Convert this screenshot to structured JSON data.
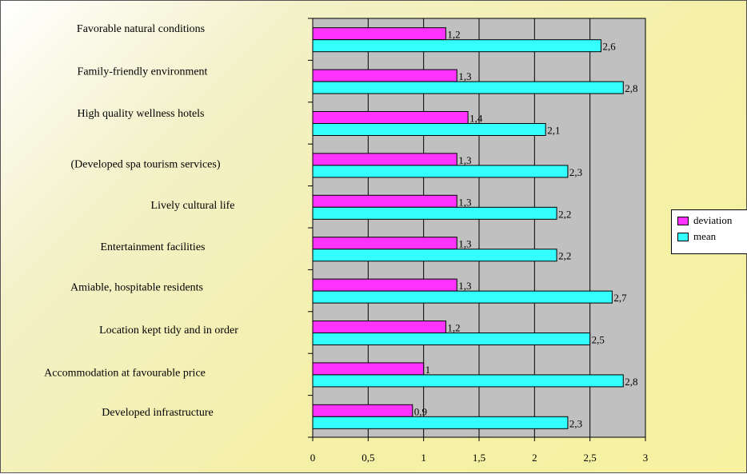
{
  "chart_data": {
    "type": "bar",
    "orientation": "horizontal",
    "categories": [
      "Favorable natural conditions",
      "Family-friendly environment",
      "High quality wellness hotels",
      "(Developed spa tourism services)",
      "Lively cultural life",
      "Entertainment facilities",
      "Amiable, hospitable residents",
      "Location kept tidy and in order",
      "Accommodation at favourable price",
      "Developed infrastructure"
    ],
    "series": [
      {
        "name": "deviation",
        "color": "#ff33ff",
        "values": [
          1.2,
          1.3,
          1.4,
          1.3,
          1.3,
          1.3,
          1.3,
          1.2,
          1,
          0.9
        ],
        "labels": [
          "1,2",
          "1,3",
          "1,4",
          "1,3",
          "1,3",
          "1,3",
          "1,3",
          "1,2",
          "1",
          "0,9"
        ]
      },
      {
        "name": "mean",
        "color": "#33ffff",
        "values": [
          2.6,
          2.8,
          2.1,
          2.3,
          2.2,
          2.2,
          2.7,
          2.5,
          2.8,
          2.3
        ],
        "labels": [
          "2,6",
          "2,8",
          "2,1",
          "2,3",
          "2,2",
          "2,2",
          "2,7",
          "2,5",
          "2,8",
          "2,3"
        ]
      }
    ],
    "xlim": [
      0,
      3
    ],
    "xticks": [
      0,
      0.5,
      1,
      1.5,
      2,
      2.5,
      3
    ],
    "xtick_labels": [
      "0",
      "0,5",
      "1",
      "1,5",
      "2",
      "2,5",
      "3"
    ],
    "grid": "vertical",
    "plot_background": "#c0c0c0",
    "legend_position": "right",
    "title": "",
    "xlabel": "",
    "ylabel": ""
  },
  "legend": {
    "items": [
      {
        "label": "deviation",
        "color": "#ff33ff"
      },
      {
        "label": "mean",
        "color": "#33ffff"
      }
    ]
  }
}
